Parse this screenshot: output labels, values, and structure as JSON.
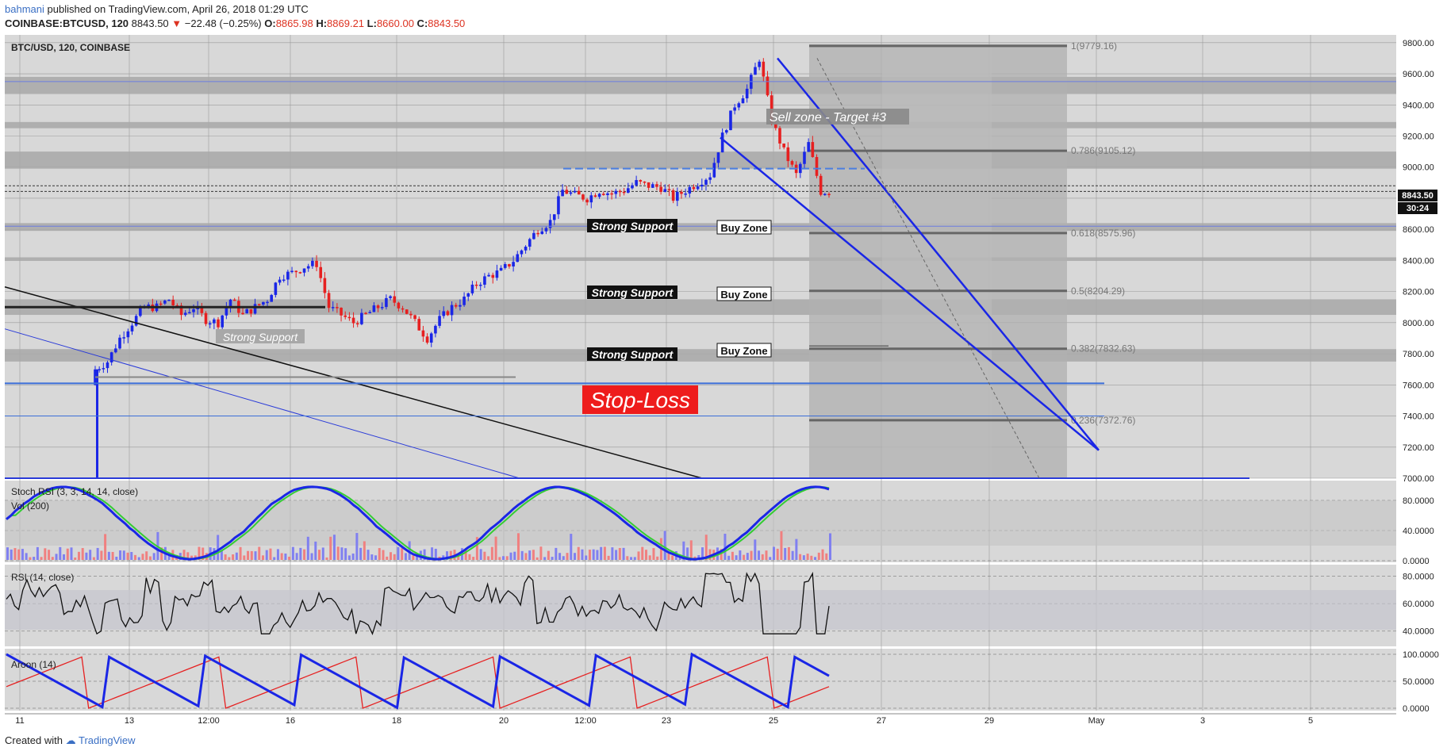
{
  "header": {
    "author": "bahmani",
    "published": "published on TradingView.com, April 26, 2018 01:29 UTC",
    "symbol": "COINBASE:BTCUSD, 120",
    "last": "8843.50",
    "change": "−22.48 (−0.25%)",
    "ohlc_o": "8865.98",
    "ohlc_h": "8869.21",
    "ohlc_l": "8660.00",
    "ohlc_c": "8843.50"
  },
  "chart_title": "BTC/USD, 120, COINBASE",
  "price_tag": "8843.50",
  "time_tag": "30:24",
  "footer": {
    "created": "Created with",
    "brand": "TradingView"
  },
  "colors": {
    "up": "#1a26e6",
    "down": "#e62020",
    "background": "#d8d8d8",
    "zone": "#b4b4b4"
  },
  "annotations": {
    "sell_zone": "Sell zone - Target #3",
    "strong_support": "Strong Support",
    "strong_support_faded": "Strong Support",
    "buy_zone": "Buy Zone",
    "stop_loss": "Stop-Loss"
  },
  "chart_data": [
    {
      "type": "candlestick",
      "title": "BTC/USD, 120, COINBASE",
      "ylim": [
        7000,
        9850
      ],
      "y_ticks": [
        "9800.00",
        "9600.00",
        "9400.00",
        "9200.00",
        "9000.00",
        "8800.00",
        "8600.00",
        "8400.00",
        "8200.00",
        "8000.00",
        "7800.00",
        "7600.00",
        "7400.00",
        "7200.00",
        "7000.00"
      ],
      "x_ticks": [
        "11",
        "13",
        "12:00",
        "16",
        "18",
        "20",
        "12:00",
        "23",
        "25",
        "27",
        "29",
        "May",
        "3",
        "5"
      ],
      "fibonacci": [
        {
          "label": "1(9779.16)",
          "value": 9779.16
        },
        {
          "label": "0.786(9105.12)",
          "value": 9105.12
        },
        {
          "label": "0.618(8575.96)",
          "value": 8575.96
        },
        {
          "label": "0.5(8204.29)",
          "value": 8204.29
        },
        {
          "label": "0.382(7832.63)",
          "value": 7832.63
        },
        {
          "label": "0.236(7372.76)",
          "value": 7372.76
        }
      ],
      "close_key": [
        7700,
        7750,
        7900,
        8000,
        8100,
        8100,
        8150,
        8050,
        8100,
        8020,
        8000,
        8150,
        8050,
        8100,
        8150,
        8300,
        8320,
        8360,
        8380,
        8100,
        8050,
        8000,
        8050,
        8100,
        8150,
        8100,
        8000,
        7900,
        8020,
        8100,
        8150,
        8250,
        8300,
        8330,
        8400,
        8500,
        8600,
        8650,
        8850,
        8820,
        8800,
        8850,
        8830,
        8850,
        8900,
        8880,
        8870,
        8800,
        8850,
        8900,
        8950,
        9200,
        9400,
        9500,
        9700,
        9300,
        9100,
        8950,
        9150,
        8843
      ]
    },
    {
      "type": "line",
      "title": "Stoch RSI (3, 3, 14, 14, close)",
      "ylim": [
        0,
        100
      ],
      "y_ticks": [
        "80.0000",
        "40.0000",
        "0.0000"
      ]
    },
    {
      "type": "bar",
      "title": "Vol (200)"
    },
    {
      "type": "line",
      "title": "RSI (14, close)",
      "ylim": [
        30,
        85
      ],
      "y_ticks": [
        "80.0000",
        "60.0000",
        "40.0000"
      ]
    },
    {
      "type": "line",
      "title": "Aroon (14)",
      "ylim": [
        0,
        100
      ],
      "y_ticks": [
        "100.0000",
        "50.0000",
        "0.0000"
      ]
    }
  ]
}
